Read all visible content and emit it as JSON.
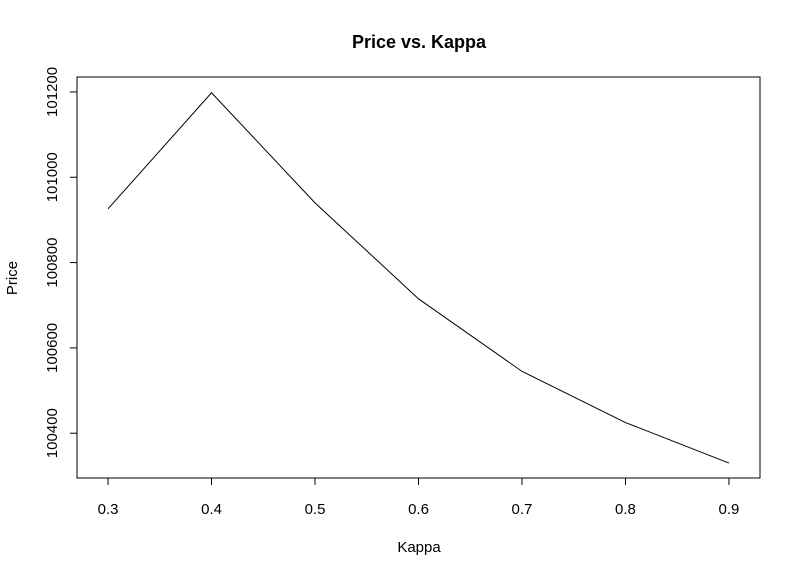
{
  "chart_data": {
    "type": "line",
    "title": "Price vs. Kappa",
    "xlabel": "Kappa",
    "ylabel": "Price",
    "x": [
      0.3,
      0.4,
      0.5,
      0.6,
      0.7,
      0.8,
      0.9
    ],
    "series": [
      {
        "values": [
          100926,
          101198,
          100940,
          100715,
          100545,
          100425,
          100330
        ]
      }
    ],
    "xticks": [
      "0.3",
      "0.4",
      "0.5",
      "0.6",
      "0.7",
      "0.8",
      "0.9"
    ],
    "yticks": [
      "100400",
      "100600",
      "100800",
      "101000",
      "101200"
    ],
    "xlim": [
      0.27,
      0.93
    ],
    "ylim": [
      100295,
      101235
    ],
    "grid": false,
    "colors": {
      "line": "#000000",
      "background": "#ffffff"
    }
  }
}
